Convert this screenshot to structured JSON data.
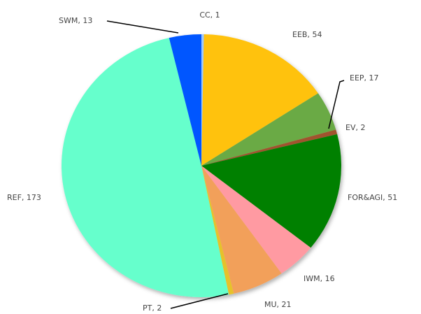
{
  "chart_data": {
    "type": "pie",
    "values": [
      1,
      54,
      17,
      2,
      51,
      16,
      21,
      2,
      173,
      13
    ],
    "value_labels": [
      "CC, 1",
      "EEB, 54",
      "EEP, 17",
      "EV, 2",
      "FOR&AGI, 51",
      "IWM, 16",
      "MU, 21",
      "PT, 2",
      "REF, 173",
      "SWM, 13"
    ],
    "colors": [
      "#9ec8ff",
      "#ffc20e",
      "#6aaa45",
      "#a0522d",
      "#008000",
      "#ff9aa2",
      "#f2a05a",
      "#e6c229",
      "#66ffcc",
      "#0057ff"
    ]
  }
}
